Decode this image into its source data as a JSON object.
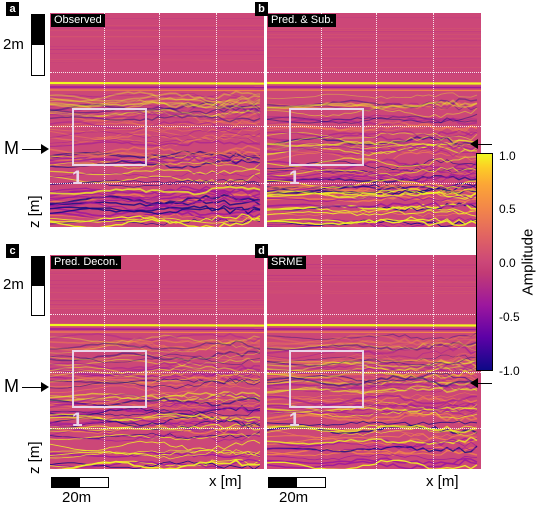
{
  "panels": [
    {
      "letter": "a",
      "title": "Observed",
      "box_label": "1"
    },
    {
      "letter": "b",
      "title": "Pred. & Sub.",
      "box_label": "1"
    },
    {
      "letter": "c",
      "title": "Pred. Decon.",
      "box_label": "1"
    },
    {
      "letter": "d",
      "title": "SRME",
      "box_label": "1"
    }
  ],
  "scales": {
    "vertical": "2m",
    "horizontal": "20m"
  },
  "axes": {
    "z_label": "z [m]",
    "x_label": "x [m]"
  },
  "marker": {
    "label": "M"
  },
  "colorbar": {
    "label": "Amplitude",
    "ticks": [
      "1.0",
      "0.5",
      "0.0",
      "-0.5",
      "-1.0"
    ],
    "colormap": [
      "#0d0887",
      "#9c179e",
      "#cc4778",
      "#f2844b",
      "#f0f921"
    ]
  }
}
